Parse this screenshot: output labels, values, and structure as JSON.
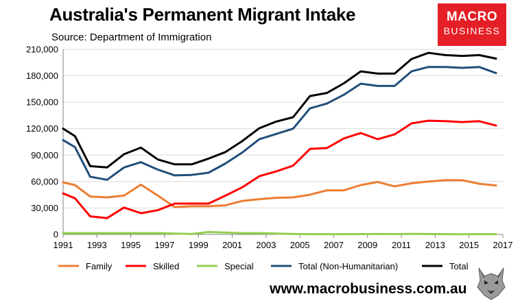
{
  "header": {
    "title": "Australia's Permanent Migrant Intake",
    "subtitle": "Source: Department of Immigration",
    "logo_line1": "MACRO",
    "logo_line2": "BUSINESS",
    "website": "www.macrobusiness.com.au"
  },
  "colors": {
    "family": "#ed7d31",
    "skilled": "#ff0000",
    "special": "#92d050",
    "total_non_humanitarian": "#1f4e79",
    "total": "#000000",
    "logo_bg": "#e41f26"
  },
  "chart_data": {
    "type": "line",
    "title": "Australia's Permanent Migrant Intake",
    "subtitle": "Source: Department of Immigration",
    "xlabel": "",
    "ylabel": "",
    "xlim": [
      1991,
      2017
    ],
    "ylim": [
      0,
      210000
    ],
    "grid": true,
    "legend_position": "bottom",
    "x_ticks": [
      "1991",
      "1993",
      "1995",
      "1997",
      "1999",
      "2001",
      "2003",
      "2005",
      "2007",
      "2009",
      "2011",
      "2013",
      "2015",
      "2017"
    ],
    "y_ticks": [
      "0",
      "30,000",
      "60,000",
      "90,000",
      "120,000",
      "150,000",
      "180,000",
      "210,000"
    ],
    "x": [
      1991,
      1991.7,
      1992.6,
      1993.6,
      1994.6,
      1995.6,
      1996.6,
      1997.6,
      1998.6,
      1999.6,
      2000.6,
      2001.6,
      2002.6,
      2003.6,
      2004.6,
      2005.6,
      2006.6,
      2007.6,
      2008.6,
      2009.6,
      2010.6,
      2011.6,
      2012.6,
      2013.6,
      2014.6,
      2015.6,
      2016.6
    ],
    "series": [
      {
        "name": "Family",
        "color_key": "family",
        "values": [
          59000,
          56000,
          43000,
          42000,
          44000,
          56500,
          44000,
          31000,
          32000,
          32000,
          33000,
          38000,
          40000,
          41500,
          42000,
          45000,
          50000,
          50000,
          56000,
          59500,
          54500,
          58000,
          60000,
          61500,
          61500,
          57500,
          55500
        ]
      },
      {
        "name": "Skilled",
        "color_key": "skilled",
        "values": [
          46500,
          41000,
          20500,
          18500,
          30500,
          24000,
          27500,
          35000,
          35000,
          35000,
          44000,
          53500,
          66000,
          71500,
          78000,
          97000,
          98000,
          109000,
          115000,
          108000,
          113500,
          126000,
          129000,
          128500,
          127500,
          128500,
          123500
        ]
      },
      {
        "name": "Special",
        "color_key": "special",
        "values": [
          1500,
          1500,
          1500,
          1500,
          1500,
          1500,
          1500,
          900,
          500,
          2700,
          2200,
          1500,
          1500,
          1000,
          500,
          300,
          300,
          300,
          400,
          500,
          400,
          600,
          500,
          300,
          200,
          300,
          300
        ]
      },
      {
        "name": "Total (Non-Humanitarian)",
        "color_key": "total_non_humanitarian",
        "values": [
          107000,
          99000,
          65500,
          62000,
          76000,
          82000,
          73500,
          67000,
          67500,
          70000,
          80500,
          93000,
          108000,
          114000,
          120000,
          143000,
          148500,
          158500,
          171000,
          168500,
          168500,
          185000,
          190000,
          190000,
          189000,
          190000,
          183000
        ]
      },
      {
        "name": "Total",
        "color_key": "total",
        "values": [
          120000,
          111500,
          77500,
          76000,
          91000,
          98500,
          85000,
          79500,
          79500,
          86000,
          93500,
          106000,
          120500,
          128000,
          133000,
          157000,
          160500,
          171500,
          185000,
          182500,
          182500,
          199000,
          206000,
          203500,
          202500,
          203500,
          199500
        ]
      }
    ]
  }
}
